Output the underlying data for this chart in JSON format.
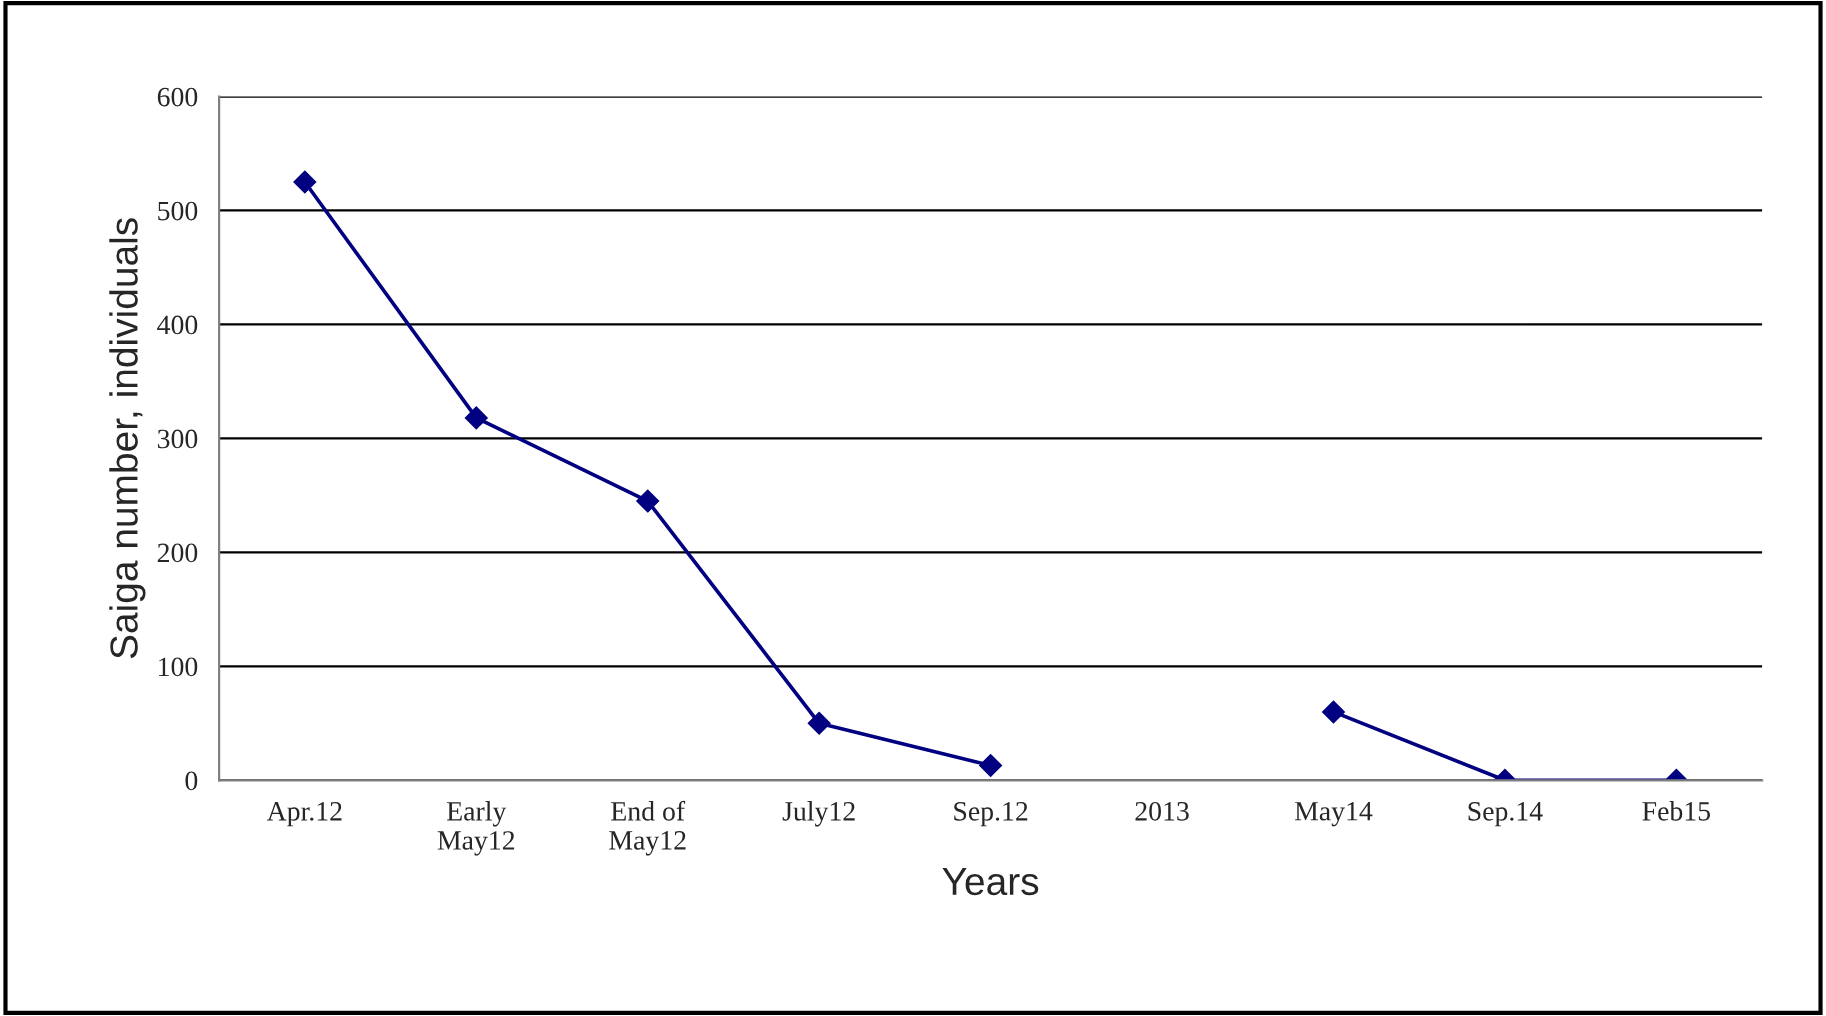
{
  "chart_data": {
    "type": "line",
    "xlabel": "Years",
    "ylabel": "Saiga number, individuals",
    "categories": [
      "Apr.12",
      "Early\nMay12",
      "End of\nMay12",
      "July12",
      "Sep.12",
      "2013",
      "May14",
      "Sep.14",
      "Feb15"
    ],
    "series": [
      {
        "color": "#000080",
        "values": [
          525,
          318,
          245,
          50,
          13,
          null,
          60,
          0,
          0
        ]
      }
    ],
    "ylim": [
      0,
      600
    ],
    "yticks": [
      0,
      100,
      200,
      300,
      400,
      500,
      600
    ],
    "grid": "y",
    "marker": "diamond",
    "line_style": "solid",
    "legend": false
  }
}
